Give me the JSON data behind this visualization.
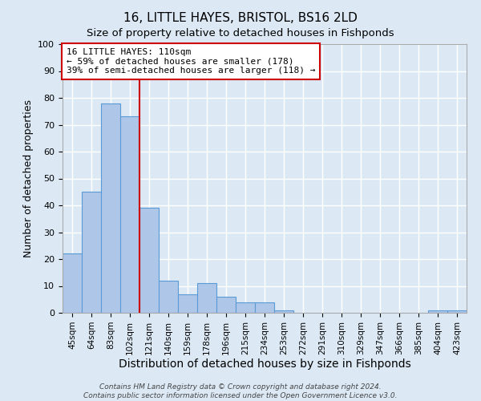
{
  "title": "16, LITTLE HAYES, BRISTOL, BS16 2LD",
  "subtitle": "Size of property relative to detached houses in Fishponds",
  "xlabel": "Distribution of detached houses by size in Fishponds",
  "ylabel": "Number of detached properties",
  "bar_labels": [
    "45sqm",
    "64sqm",
    "83sqm",
    "102sqm",
    "121sqm",
    "140sqm",
    "159sqm",
    "178sqm",
    "196sqm",
    "215sqm",
    "234sqm",
    "253sqm",
    "272sqm",
    "291sqm",
    "310sqm",
    "329sqm",
    "347sqm",
    "366sqm",
    "385sqm",
    "404sqm",
    "423sqm"
  ],
  "bar_values": [
    22,
    45,
    78,
    73,
    39,
    12,
    7,
    11,
    6,
    4,
    4,
    1,
    0,
    0,
    0,
    0,
    0,
    0,
    0,
    1,
    1
  ],
  "bar_color": "#aec6e8",
  "bar_edge_color": "#5b9bd5",
  "background_color": "#dce9f5",
  "plot_bg_color": "#dce9f5",
  "grid_color": "#ffffff",
  "ylim": [
    0,
    100
  ],
  "yticks": [
    0,
    10,
    20,
    30,
    40,
    50,
    60,
    70,
    80,
    90,
    100
  ],
  "vline_color": "#cc0000",
  "annotation_text": "16 LITTLE HAYES: 110sqm\n← 59% of detached houses are smaller (178)\n39% of semi-detached houses are larger (118) →",
  "annotation_box_color": "#ffffff",
  "annotation_box_edge": "#cc0000",
  "footer_line1": "Contains HM Land Registry data © Crown copyright and database right 2024.",
  "footer_line2": "Contains public sector information licensed under the Open Government Licence v3.0."
}
